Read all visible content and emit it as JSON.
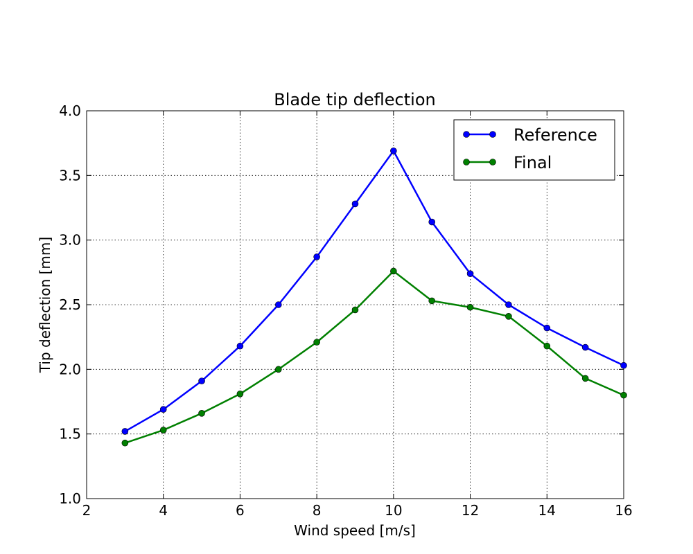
{
  "chart_data": {
    "type": "line",
    "title": "Blade tip deflection",
    "xlabel": "Wind speed [m/s]",
    "ylabel": "Tip deflection [mm]",
    "xlim": [
      2,
      16
    ],
    "ylim": [
      1.0,
      4.0
    ],
    "xticks": [
      "2",
      "4",
      "6",
      "8",
      "10",
      "12",
      "14",
      "16"
    ],
    "yticks": [
      "1.0",
      "1.5",
      "2.0",
      "2.5",
      "3.0",
      "3.5",
      "4.0"
    ],
    "grid": true,
    "legend_position": "top-right",
    "x": [
      3,
      4,
      5,
      6,
      7,
      8,
      9,
      10,
      11,
      12,
      13,
      14,
      15,
      16
    ],
    "series": [
      {
        "name": "Reference",
        "color": "#0000ff",
        "values": [
          1.52,
          1.69,
          1.91,
          2.18,
          2.5,
          2.87,
          3.28,
          3.69,
          3.14,
          2.74,
          2.5,
          2.32,
          2.17,
          2.03
        ]
      },
      {
        "name": "Final",
        "color": "#008000",
        "values": [
          1.43,
          1.53,
          1.66,
          1.81,
          2.0,
          2.21,
          2.46,
          2.76,
          2.53,
          2.48,
          2.41,
          2.18,
          1.93,
          1.8
        ]
      }
    ]
  }
}
